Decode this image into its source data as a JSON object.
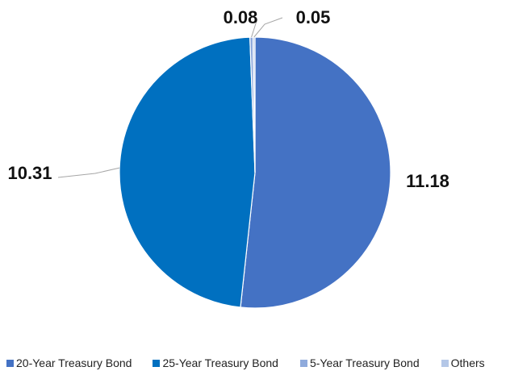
{
  "chart_data": {
    "type": "pie",
    "title": "",
    "categories": [
      "20-Year Treasury Bond",
      "25-Year Treasury Bond",
      "5-Year Treasury Bond",
      "Others"
    ],
    "values": [
      11.18,
      10.31,
      0.08,
      0.05
    ],
    "data_labels": [
      "11.18",
      "10.31",
      "0.08",
      "0.05"
    ],
    "colors": [
      "#4472C4",
      "#0070C0",
      "#8FAADC",
      "#B4C7E7"
    ],
    "start_angle_deg": 0,
    "direction": "clockwise",
    "legend_position": "bottom"
  }
}
